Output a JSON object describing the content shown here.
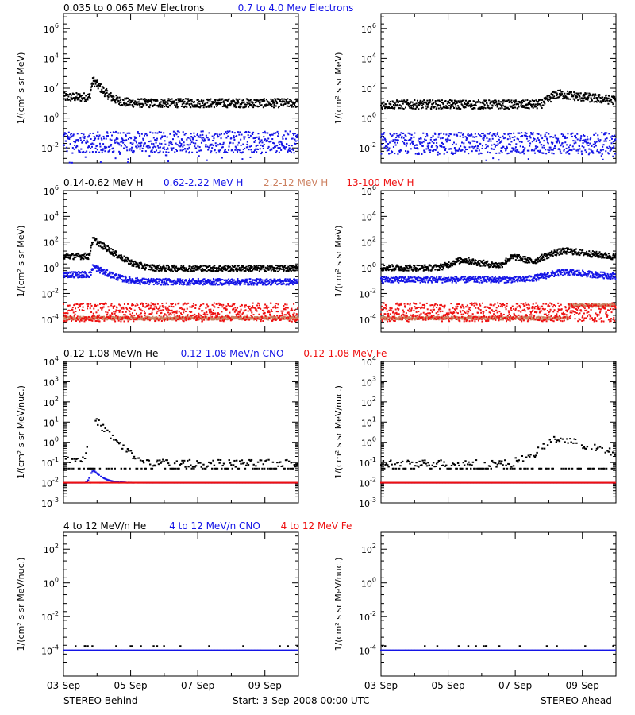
{
  "colors": {
    "black": "#000000",
    "blue": "#1414e6",
    "salmon": "#cc8060",
    "red": "#ee1111"
  },
  "footer": {
    "left": "STEREO Behind",
    "center": "Start:  3-Sep-2008 00:00 UTC",
    "right": "STEREO Ahead"
  },
  "chart_data": [
    {
      "type": "scatter",
      "panel": "behind-electrons",
      "x_ticks": [
        "03-Sep",
        "05-Sep",
        "07-Sep",
        "09-Sep"
      ],
      "ylabel": "1/(cm² s sr MeV)",
      "ylim": [
        0.001,
        10000000
      ],
      "log_y": true,
      "y_ticks": [
        {
          "mant": "10",
          "exp": "6",
          "v": 1000000
        },
        {
          "mant": "10",
          "exp": "4",
          "v": 10000
        },
        {
          "mant": "10",
          "exp": "2",
          "v": 100
        },
        {
          "mant": "10",
          "exp": "0",
          "v": 1
        },
        {
          "mant": "10",
          "exp": "-2",
          "v": 0.01
        }
      ],
      "legend": [
        {
          "text": "0.035 to 0.065 MeV Electrons",
          "color": "#000000"
        },
        {
          "text": "0.7 to 4.0 Mev Electrons",
          "color": "#1414e6"
        }
      ],
      "series": [
        {
          "name": "0.035 to 0.065 MeV Electrons",
          "color": "#000000",
          "base": 10,
          "noise": 0.05,
          "dense": true,
          "events": [
            {
              "x": 0.9,
              "peak": 300,
              "rise": 0.05,
              "decay": 0.18
            }
          ],
          "plateau": {
            "from": 0,
            "to": 0.9,
            "val": 25
          }
        },
        {
          "name": "0.7 to 4.0 Mev Electrons",
          "color": "#1414e6",
          "base": 0.025,
          "noise": 0.12,
          "dense": true,
          "events": [],
          "outliers": true
        }
      ]
    },
    {
      "type": "scatter",
      "panel": "ahead-electrons",
      "x_ticks": [
        "03-Sep",
        "05-Sep",
        "07-Sep",
        "09-Sep"
      ],
      "ylabel": "1/(cm² s sr MeV)",
      "ylim": [
        0.001,
        10000000
      ],
      "log_y": true,
      "y_ticks": [
        {
          "mant": "10",
          "exp": "6",
          "v": 1000000
        },
        {
          "mant": "10",
          "exp": "4",
          "v": 10000
        },
        {
          "mant": "10",
          "exp": "2",
          "v": 100
        },
        {
          "mant": "10",
          "exp": "0",
          "v": 1
        },
        {
          "mant": "10",
          "exp": "-2",
          "v": 0.01
        }
      ],
      "series": [
        {
          "name": "0.035 to 0.065 MeV Electrons",
          "color": "#000000",
          "base": 8,
          "noise": 0.05,
          "dense": true,
          "events": [
            {
              "x": 5.3,
              "peak": 40,
              "rise": 0.2,
              "decay": 1.2
            }
          ]
        },
        {
          "name": "0.7 to 4.0 Mev Electrons",
          "color": "#1414e6",
          "base": 0.02,
          "noise": 0.12,
          "dense": true,
          "events": [],
          "outliers": true
        }
      ]
    },
    {
      "type": "scatter",
      "panel": "behind-protons",
      "x_ticks": [
        "03-Sep",
        "05-Sep",
        "07-Sep",
        "09-Sep"
      ],
      "ylabel": "1/(cm² s sr MeV)",
      "ylim": [
        1e-05,
        1000000
      ],
      "log_y": true,
      "y_ticks": [
        {
          "mant": "10",
          "exp": "6",
          "v": 1000000
        },
        {
          "mant": "10",
          "exp": "4",
          "v": 10000
        },
        {
          "mant": "10",
          "exp": "2",
          "v": 100
        },
        {
          "mant": "10",
          "exp": "0",
          "v": 1
        },
        {
          "mant": "10",
          "exp": "-2",
          "v": 0.01
        },
        {
          "mant": "10",
          "exp": "-4",
          "v": 0.0001
        }
      ],
      "legend": [
        {
          "text": "0.14-0.62 MeV H",
          "color": "#000000"
        },
        {
          "text": "0.62-2.22 MeV H",
          "color": "#1414e6"
        },
        {
          "text": "2.2-12 MeV H",
          "color": "#cc8060"
        },
        {
          "text": "13-100 MeV H",
          "color": "#ee1111"
        }
      ],
      "series": [
        {
          "name": "0.14-0.62 MeV H",
          "color": "#000000",
          "base": 0.9,
          "noise": 0.04,
          "dense": true,
          "events": [
            {
              "x": 0.9,
              "peak": 150,
              "rise": 0.05,
              "decay": 0.25
            }
          ],
          "plateau": {
            "from": 0,
            "to": 0.9,
            "val": 8
          }
        },
        {
          "name": "0.62-2.22 MeV H",
          "color": "#1414e6",
          "base": 0.08,
          "noise": 0.04,
          "dense": true,
          "events": [
            {
              "x": 0.9,
              "peak": 1.2,
              "rise": 0.05,
              "decay": 0.3
            }
          ],
          "plateau": {
            "from": 0,
            "to": 0.9,
            "val": 0.3
          }
        },
        {
          "name": "2.2-12 MeV H",
          "color": "#cc8060",
          "base": 0.00012,
          "noise": 0.02,
          "dense": true,
          "events": []
        },
        {
          "name": "13-100 MeV H",
          "color": "#ee1111",
          "base": 0.00035,
          "noise": 0.12,
          "dense": true,
          "events": []
        }
      ]
    },
    {
      "type": "scatter",
      "panel": "ahead-protons",
      "x_ticks": [
        "03-Sep",
        "05-Sep",
        "07-Sep",
        "09-Sep"
      ],
      "ylabel": "1/(cm² s sr MeV)",
      "ylim": [
        1e-05,
        1000000
      ],
      "log_y": true,
      "y_ticks": [
        {
          "mant": "10",
          "exp": "6",
          "v": 1000000
        },
        {
          "mant": "10",
          "exp": "4",
          "v": 10000
        },
        {
          "mant": "10",
          "exp": "2",
          "v": 100
        },
        {
          "mant": "10",
          "exp": "0",
          "v": 1
        },
        {
          "mant": "10",
          "exp": "-2",
          "v": 0.01
        },
        {
          "mant": "10",
          "exp": "-4",
          "v": 0.0001
        }
      ],
      "series": [
        {
          "name": "0.14-0.62 MeV H",
          "color": "#000000",
          "base": 1.0,
          "noise": 0.04,
          "dense": true,
          "events": [
            {
              "x": 2.5,
              "peak": 4,
              "rise": 0.3,
              "decay": 0.6
            },
            {
              "x": 4.0,
              "peak": 7,
              "rise": 0.2,
              "decay": 0.5
            },
            {
              "x": 5.6,
              "peak": 20,
              "rise": 0.5,
              "decay": 1.2
            }
          ]
        },
        {
          "name": "0.62-2.22 MeV H",
          "color": "#1414e6",
          "base": 0.12,
          "noise": 0.04,
          "dense": true,
          "events": [
            {
              "x": 5.6,
              "peak": 0.45,
              "rise": 0.5,
              "decay": 1.2
            }
          ]
        },
        {
          "name": "2.2-12 MeV H",
          "color": "#cc8060",
          "base": 0.00012,
          "noise": 0.02,
          "dense": true,
          "events": [],
          "step": {
            "from": 5.6,
            "val": 0.0012
          }
        },
        {
          "name": "13-100 MeV H",
          "color": "#ee1111",
          "base": 0.00035,
          "noise": 0.12,
          "dense": true,
          "events": []
        }
      ]
    },
    {
      "type": "scatter",
      "panel": "behind-ions-low",
      "x_ticks": [
        "03-Sep",
        "05-Sep",
        "07-Sep",
        "09-Sep"
      ],
      "ylabel": "1/(cm² s sr MeV/nuc.)",
      "ylim": [
        0.001,
        10000
      ],
      "log_y": true,
      "y_ticks": [
        {
          "mant": "10",
          "exp": "4",
          "v": 10000
        },
        {
          "mant": "10",
          "exp": "3",
          "v": 1000
        },
        {
          "mant": "10",
          "exp": "2",
          "v": 100
        },
        {
          "mant": "10",
          "exp": "1",
          "v": 10
        },
        {
          "mant": "10",
          "exp": "0",
          "v": 1
        },
        {
          "mant": "10",
          "exp": "-1",
          "v": 0.1
        },
        {
          "mant": "10",
          "exp": "-2",
          "v": 0.01
        },
        {
          "mant": "10",
          "exp": "-3",
          "v": 0.001
        }
      ],
      "legend": [
        {
          "text": "0.12-1.08 MeV/n He",
          "color": "#000000"
        },
        {
          "text": "0.12-1.08 MeV/n CNO",
          "color": "#1414e6"
        },
        {
          "text": "0.12-1.08 MeV Fe",
          "color": "#ee1111"
        }
      ],
      "series": [
        {
          "name": "0.12-1.08 MeV/n He",
          "color": "#000000",
          "base": 0.09,
          "noise": 0.03,
          "dense": false,
          "floor": 0.05,
          "events": [
            {
              "x": 0.9,
              "peak": 15,
              "rise": 0.08,
              "decay": 0.25
            }
          ],
          "plateau": {
            "from": 0,
            "to": 0.9,
            "val": 0.15
          }
        },
        {
          "name": "0.12-1.08 MeV/n CNO",
          "color": "#1414e6",
          "base": 0.01,
          "noise": 0.0,
          "dense": false,
          "floor": 0.01,
          "events": [
            {
              "x": 0.9,
              "peak": 0.04,
              "rise": 0.08,
              "decay": 0.2
            }
          ]
        },
        {
          "name": "0.12-1.08 MeV Fe",
          "color": "#ee1111",
          "base": 0.01,
          "noise": 0.0,
          "dense": false,
          "floor": 0.01,
          "events": []
        }
      ]
    },
    {
      "type": "scatter",
      "panel": "ahead-ions-low",
      "x_ticks": [
        "03-Sep",
        "05-Sep",
        "07-Sep",
        "09-Sep"
      ],
      "ylabel": "1/(cm² s sr MeV/nuc.)",
      "ylim": [
        0.001,
        10000
      ],
      "log_y": true,
      "y_ticks": [
        {
          "mant": "10",
          "exp": "4",
          "v": 10000
        },
        {
          "mant": "10",
          "exp": "3",
          "v": 1000
        },
        {
          "mant": "10",
          "exp": "2",
          "v": 100
        },
        {
          "mant": "10",
          "exp": "1",
          "v": 10
        },
        {
          "mant": "10",
          "exp": "0",
          "v": 1
        },
        {
          "mant": "10",
          "exp": "-1",
          "v": 0.1
        },
        {
          "mant": "10",
          "exp": "-2",
          "v": 0.01
        },
        {
          "mant": "10",
          "exp": "-3",
          "v": 0.001
        }
      ],
      "series": [
        {
          "name": "0.12-1.08 MeV/n He",
          "color": "#000000",
          "base": 0.09,
          "noise": 0.03,
          "dense": false,
          "floor": 0.05,
          "events": [
            {
              "x": 5.4,
              "peak": 1.5,
              "rise": 0.4,
              "decay": 0.8
            }
          ],
          "plateau": {
            "from": 4.0,
            "to": 5.4,
            "val": 0.15
          }
        },
        {
          "name": "0.12-1.08 MeV/n CNO",
          "color": "#1414e6",
          "base": 0.01,
          "noise": 0.0,
          "dense": false,
          "floor": 0.01,
          "events": []
        },
        {
          "name": "0.12-1.08 MeV Fe",
          "color": "#ee1111",
          "base": 0.01,
          "noise": 0.0,
          "dense": false,
          "floor": 0.01,
          "events": []
        }
      ]
    },
    {
      "type": "scatter",
      "panel": "behind-ions-high",
      "x_ticks": [
        "03-Sep",
        "05-Sep",
        "07-Sep",
        "09-Sep"
      ],
      "ylabel": "1/(cm² s sr MeV/nuc.)",
      "ylim": [
        3e-06,
        1000
      ],
      "log_y": true,
      "y_ticks": [
        {
          "mant": "10",
          "exp": "2",
          "v": 100
        },
        {
          "mant": "10",
          "exp": "0",
          "v": 1
        },
        {
          "mant": "10",
          "exp": "-2",
          "v": 0.01
        },
        {
          "mant": "10",
          "exp": "-4",
          "v": 0.0001
        }
      ],
      "legend": [
        {
          "text": "4 to 12 MeV/n He",
          "color": "#000000"
        },
        {
          "text": "4 to 12 MeV/n CNO",
          "color": "#1414e6"
        },
        {
          "text": "4 to 12 MeV Fe",
          "color": "#ee1111"
        }
      ],
      "series": [
        {
          "name": "4 to 12 MeV/n CNO",
          "color": "#1414e6",
          "base": 0.0001,
          "noise": 0.0,
          "dense": false,
          "floor": 0.0001,
          "events": []
        },
        {
          "name": "4 to 12 MeV/n He",
          "color": "#000000",
          "base": 0.00018,
          "noise": 0.0,
          "dense": false,
          "sparse": true,
          "events": []
        }
      ]
    },
    {
      "type": "scatter",
      "panel": "ahead-ions-high",
      "x_ticks": [
        "03-Sep",
        "05-Sep",
        "07-Sep",
        "09-Sep"
      ],
      "ylabel": "1/(cm² s sr MeV/nuc.)",
      "ylim": [
        3e-06,
        1000
      ],
      "log_y": true,
      "y_ticks": [
        {
          "mant": "10",
          "exp": "2",
          "v": 100
        },
        {
          "mant": "10",
          "exp": "0",
          "v": 1
        },
        {
          "mant": "10",
          "exp": "-2",
          "v": 0.01
        },
        {
          "mant": "10",
          "exp": "-4",
          "v": 0.0001
        }
      ],
      "series": [
        {
          "name": "4 to 12 MeV/n CNO",
          "color": "#1414e6",
          "base": 0.0001,
          "noise": 0.0,
          "dense": false,
          "floor": 0.0001,
          "events": []
        },
        {
          "name": "4 to 12 MeV/n He",
          "color": "#000000",
          "base": 0.00018,
          "noise": 0.0,
          "dense": false,
          "sparse": true,
          "events": []
        }
      ]
    }
  ]
}
